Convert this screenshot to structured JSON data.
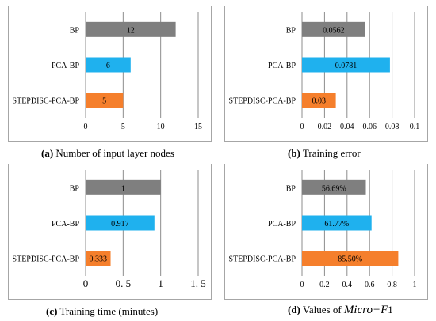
{
  "chart_data": [
    {
      "id": "a",
      "type": "bar",
      "orientation": "horizontal",
      "categories": [
        "BP",
        "PCA-BP",
        "STEPDISC-PCA-BP"
      ],
      "values": [
        12,
        6,
        5
      ],
      "value_labels": [
        "12",
        "6",
        "5"
      ],
      "colors": [
        "#7f7f7f",
        "#1fb1ee",
        "#f57f2c"
      ],
      "xlim": [
        0,
        15
      ],
      "xticks": [
        "0",
        "5",
        "10",
        "15"
      ],
      "xtick_values": [
        0,
        5,
        10,
        15
      ],
      "grid": true,
      "caption_letter": "(a)",
      "caption_text": " Number of input layer nodes"
    },
    {
      "id": "b",
      "type": "bar",
      "orientation": "horizontal",
      "categories": [
        "BP",
        "PCA-BP",
        "STEPDISC-PCA-BP"
      ],
      "values": [
        0.0562,
        0.0781,
        0.03
      ],
      "value_labels": [
        "0.0562",
        "0.0781",
        "0.03"
      ],
      "colors": [
        "#7f7f7f",
        "#1fb1ee",
        "#f57f2c"
      ],
      "xlim": [
        0,
        0.1
      ],
      "xticks": [
        "0",
        "0.02",
        "0.04",
        "0.06",
        "0.08",
        "0.1"
      ],
      "xtick_values": [
        0,
        0.02,
        0.04,
        0.06,
        0.08,
        0.1
      ],
      "grid": true,
      "caption_letter": "(b)",
      "caption_text": " Training error"
    },
    {
      "id": "c",
      "type": "bar",
      "orientation": "horizontal",
      "categories": [
        "BP",
        "PCA-BP",
        "STEPDISC-PCA-BP"
      ],
      "values": [
        1,
        0.917,
        0.333
      ],
      "value_labels": [
        "1",
        "0.917",
        "0.333"
      ],
      "colors": [
        "#7f7f7f",
        "#1fb1ee",
        "#f57f2c"
      ],
      "xlim": [
        0,
        1.5
      ],
      "xticks": [
        "0",
        "0. 5",
        "1",
        "1. 5"
      ],
      "xtick_values": [
        0,
        0.5,
        1,
        1.5
      ],
      "grid": true,
      "caption_letter": "(c)",
      "caption_text": " Training time (minutes)"
    },
    {
      "id": "d",
      "type": "bar",
      "orientation": "horizontal",
      "categories": [
        "BP",
        "PCA-BP",
        "STEPDISC-PCA-BP"
      ],
      "values": [
        0.5669,
        0.6177,
        0.855
      ],
      "value_labels": [
        "56.69%",
        "61.77%",
        "85.50%"
      ],
      "colors": [
        "#7f7f7f",
        "#1fb1ee",
        "#f57f2c"
      ],
      "xlim": [
        0,
        1
      ],
      "xticks": [
        "0",
        "0.2",
        "0.4",
        "0.6",
        "0.8",
        "1"
      ],
      "xtick_values": [
        0,
        0.2,
        0.4,
        0.6,
        0.8,
        1
      ],
      "grid": true,
      "caption_letter": "(d)",
      "caption_text": " Values of ",
      "caption_italic": "Micro−F",
      "caption_suffix": "1"
    }
  ]
}
